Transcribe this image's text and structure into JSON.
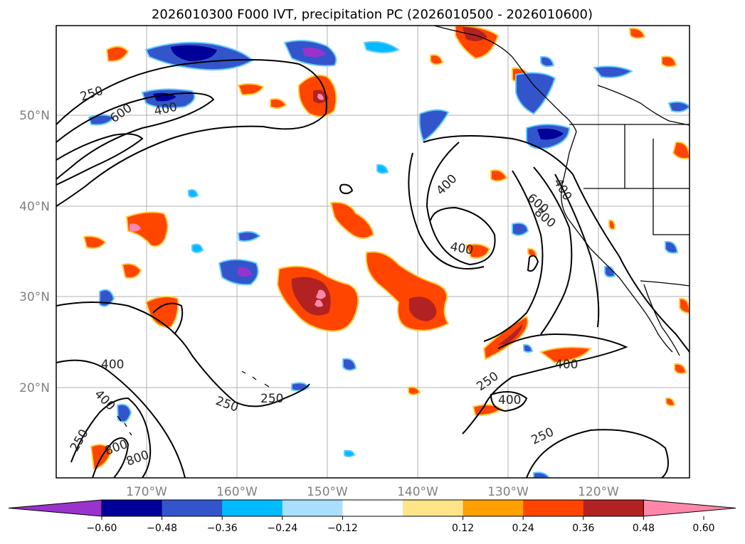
{
  "title": "2026010300 F000 IVT, precipitation PC (2026010500 - 2026010600)",
  "map": {
    "lon_labels": [
      "170°W",
      "160°W",
      "150°W",
      "140°W",
      "130°W",
      "120°W"
    ],
    "lat_labels": [
      "50°N",
      "40°N",
      "30°N",
      "20°N"
    ],
    "ivt_contour_labels": [
      "250",
      "600",
      "400",
      "400",
      "600",
      "400",
      "400",
      "250",
      "400",
      "400",
      "250",
      "800",
      "800",
      "400",
      "250",
      "400",
      "250",
      "250",
      "800"
    ]
  },
  "colorbar": {
    "ticks": [
      "−0.60",
      "−0.48",
      "−0.36",
      "−0.24",
      "−0.12",
      "0.12",
      "0.24",
      "0.36",
      "0.48",
      "0.60"
    ],
    "colors": [
      "#9933cc",
      "#000099",
      "#3355cc",
      "#00bbff",
      "#aae0ff",
      "#ffffff",
      "#ffe58a",
      "#ff9f00",
      "#ff4500",
      "#b22222",
      "#ff88aa"
    ]
  }
}
